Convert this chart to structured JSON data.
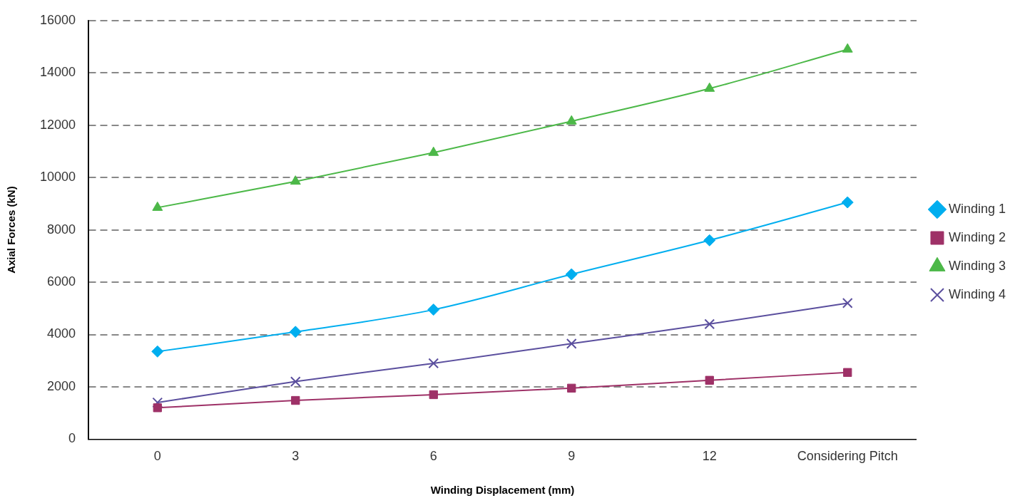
{
  "chart_data": {
    "type": "line",
    "xlabel": "Winding Displacement (mm)",
    "ylabel": "Axial Forces (kN)",
    "categories": [
      "0",
      "3",
      "6",
      "9",
      "12",
      "Considering Pitch"
    ],
    "series": [
      {
        "name": "Winding 1",
        "color": "#00aeef",
        "marker": "diamond",
        "values": [
          3350,
          4100,
          4950,
          6300,
          7600,
          9050
        ]
      },
      {
        "name": "Winding 2",
        "color": "#9e3167",
        "marker": "square",
        "values": [
          1200,
          1480,
          1700,
          1950,
          2250,
          2550
        ]
      },
      {
        "name": "Winding 3",
        "color": "#4cb848",
        "marker": "triangle",
        "values": [
          8850,
          9850,
          10950,
          12150,
          13400,
          14900
        ]
      },
      {
        "name": "Winding 4",
        "color": "#5b4f9e",
        "marker": "cross",
        "values": [
          1400,
          2200,
          2900,
          3650,
          4400,
          5200
        ]
      }
    ],
    "ylim": [
      0,
      16000
    ],
    "yticks": [
      0,
      2000,
      4000,
      6000,
      8000,
      10000,
      12000,
      14000,
      16000
    ],
    "grid": "y",
    "legend": "right",
    "line_style": "solid"
  }
}
